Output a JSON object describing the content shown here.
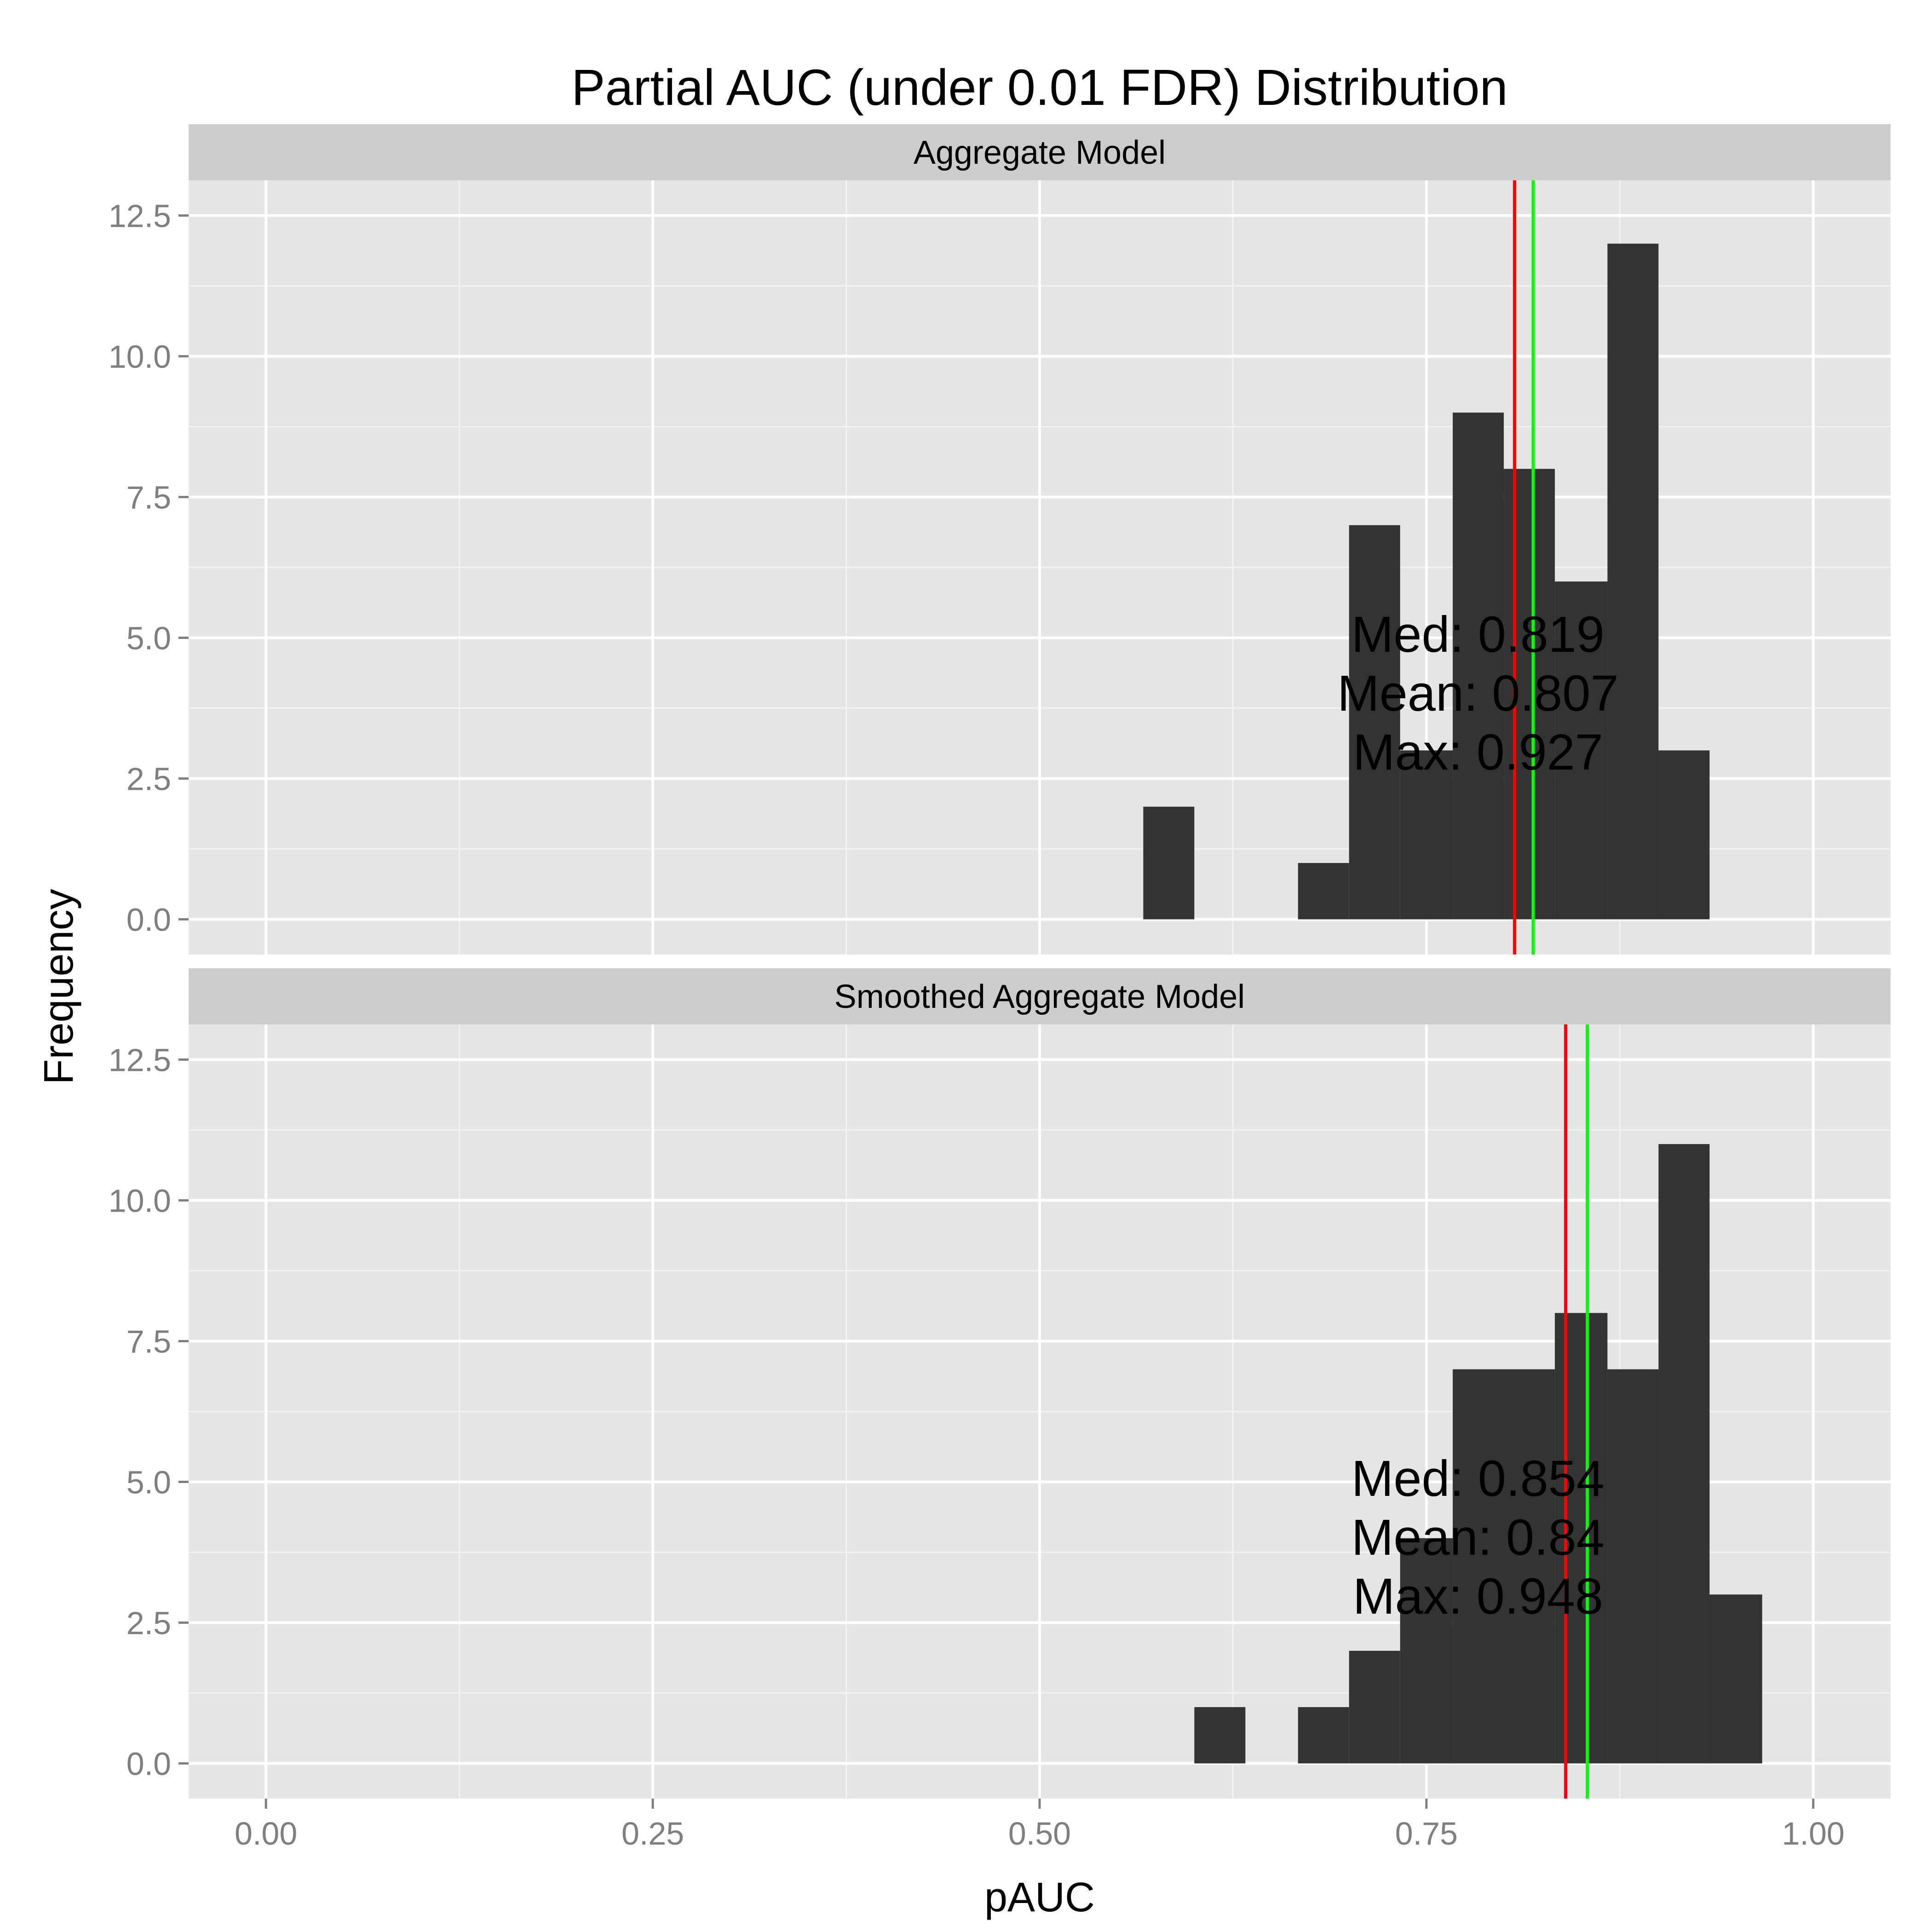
{
  "chart_data": {
    "type": "bar",
    "title": "Partial AUC (under 0.01 FDR) Distribution",
    "xlabel": "pAUC",
    "ylabel": "Frequency",
    "xlim": [
      -0.05,
      1.05
    ],
    "ylim": [
      -0.625,
      13.125
    ],
    "x_ticks": [
      0.0,
      0.25,
      0.5,
      0.75,
      1.0
    ],
    "x_tick_labels": [
      "0.00",
      "0.25",
      "0.50",
      "0.75",
      "1.00"
    ],
    "y_ticks": [
      0,
      2.5,
      5,
      7.5,
      10,
      12.5
    ],
    "y_tick_labels": [
      "0.0",
      "2.5",
      "5.0",
      "7.5",
      "10.0",
      "12.5"
    ],
    "bar_color": "#333333",
    "median_line_color": "#00ff00",
    "mean_line_color": "#ff0000",
    "panels": [
      {
        "label": "Aggregate Model",
        "bins": [
          {
            "x0": 0.567,
            "x1": 0.6,
            "count": 2
          },
          {
            "x0": 0.667,
            "x1": 0.7,
            "count": 1
          },
          {
            "x0": 0.7,
            "x1": 0.733,
            "count": 7
          },
          {
            "x0": 0.733,
            "x1": 0.767,
            "count": 3
          },
          {
            "x0": 0.767,
            "x1": 0.8,
            "count": 9
          },
          {
            "x0": 0.8,
            "x1": 0.833,
            "count": 8
          },
          {
            "x0": 0.833,
            "x1": 0.867,
            "count": 6
          },
          {
            "x0": 0.867,
            "x1": 0.9,
            "count": 12
          },
          {
            "x0": 0.9,
            "x1": 0.933,
            "count": 3
          }
        ],
        "median": 0.819,
        "mean": 0.807,
        "max": 0.927,
        "annotation": {
          "x": 0.7833,
          "y": 4.0,
          "lines": [
            "Med: 0.819",
            "Mean: 0.807",
            "Max: 0.927"
          ]
        }
      },
      {
        "label": "Smoothed Aggregate Model",
        "bins": [
          {
            "x0": 0.6,
            "x1": 0.633,
            "count": 1
          },
          {
            "x0": 0.667,
            "x1": 0.7,
            "count": 1
          },
          {
            "x0": 0.7,
            "x1": 0.733,
            "count": 2
          },
          {
            "x0": 0.733,
            "x1": 0.767,
            "count": 4
          },
          {
            "x0": 0.767,
            "x1": 0.833,
            "count": 7
          },
          {
            "x0": 0.833,
            "x1": 0.867,
            "count": 8
          },
          {
            "x0": 0.867,
            "x1": 0.9,
            "count": 7
          },
          {
            "x0": 0.9,
            "x1": 0.933,
            "count": 11
          },
          {
            "x0": 0.933,
            "x1": 0.967,
            "count": 3
          }
        ],
        "median": 0.854,
        "mean": 0.84,
        "max": 0.948,
        "annotation": {
          "x": 0.7833,
          "y": 4.0,
          "lines": [
            "Med: 0.854",
            "Mean: 0.84",
            "Max: 0.948"
          ]
        }
      }
    ]
  }
}
